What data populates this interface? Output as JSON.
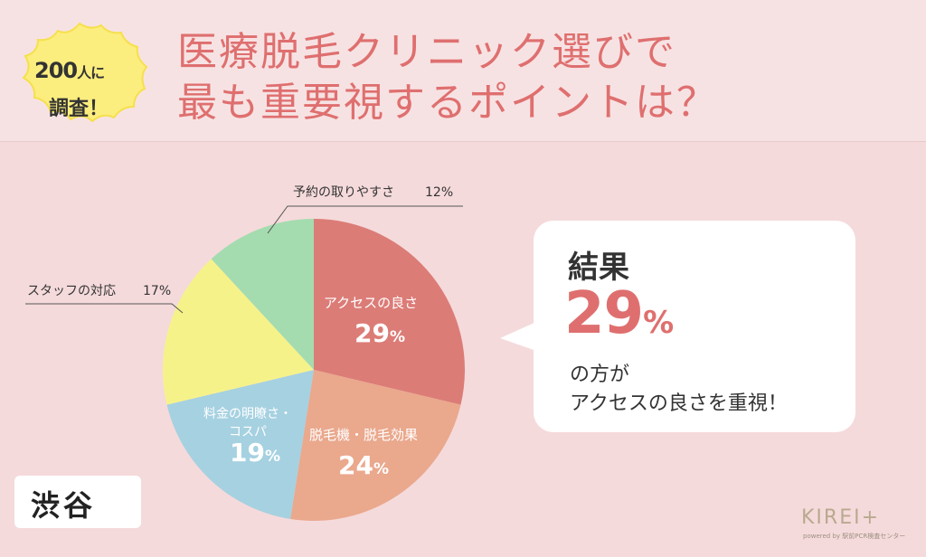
{
  "header": {
    "badge_line1_num": "200",
    "badge_line1_suffix": "人に",
    "badge_line2": "調査！",
    "title_line1": "医療脱毛クリニック選びで",
    "title_line2": "最も重要視するポイントは？"
  },
  "chart_data": {
    "type": "pie",
    "slices": [
      {
        "label": "アクセスの良さ",
        "value": 29,
        "value_text": "29",
        "unit": "%",
        "color": "#dc7c77"
      },
      {
        "label": "脱毛機・脱毛効果",
        "value": 24,
        "value_text": "24",
        "unit": "%",
        "color": "#eaa88d"
      },
      {
        "label": "料金の明瞭さ・コスパ",
        "label_lines": [
          "料金の明瞭さ・",
          "コスパ"
        ],
        "value": 19,
        "value_text": "19",
        "unit": "%",
        "color": "#a6d1e1"
      },
      {
        "label": "スタッフの対応",
        "value": 17,
        "value_text": "17%",
        "color": "#f6f28a"
      },
      {
        "label": "予約の取りやすさ",
        "value": 12,
        "value_text": "12%",
        "color": "#a4dcb0"
      }
    ]
  },
  "callout": {
    "heading": "結果",
    "percent": "29",
    "unit": "%",
    "line1": "の方が",
    "line2": "アクセスの良さを重視！"
  },
  "place_label": "渋谷",
  "logo": {
    "main": "KIREI+",
    "sub": "powered by 駅前PCR検査センター"
  },
  "colors": {
    "accent": "#df6f6f",
    "background": "#f5dadb"
  }
}
